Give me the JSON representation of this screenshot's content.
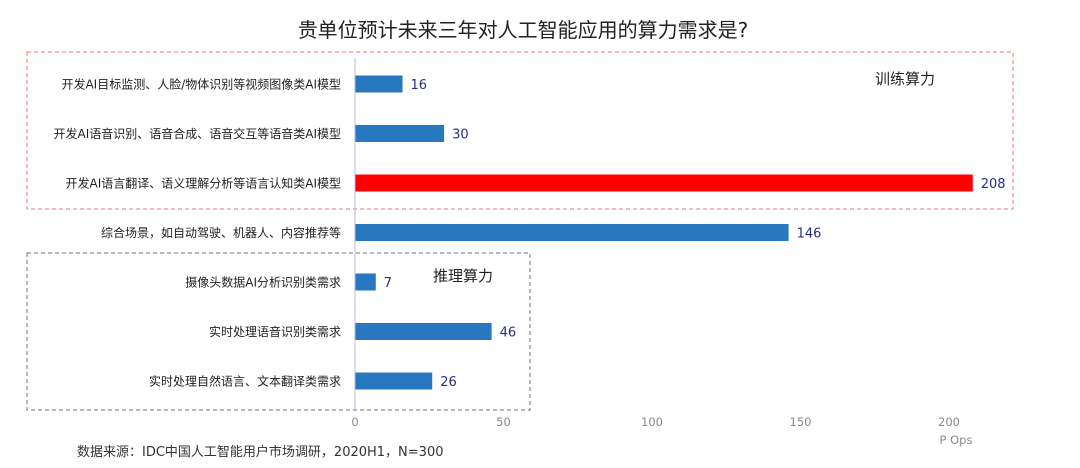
{
  "chart_data": {
    "type": "bar",
    "orientation": "horizontal",
    "title": "贵单位预计未来三年对人工智能应用的算力需求是?",
    "categories": [
      "开发AI目标监测、人脸/物体识别等视频图像类AI模型",
      "开发AI语音识别、语音合成、语音交互等语音类AI模型",
      "开发AI语言翻译、语义理解分析等语言认知类AI模型",
      "综合场景，如自动驾驶、机器人、内容推荐等",
      "摄像头数据AI分析识别类需求",
      "实时处理语音识别类需求",
      "实时处理自然语言、文本翻译类需求"
    ],
    "values": [
      16,
      30,
      208,
      146,
      7,
      46,
      26
    ],
    "highlight_index": 2,
    "xlim": [
      0,
      210
    ],
    "xticks": [
      0,
      50,
      100,
      150,
      200
    ],
    "xlabel": "P Ops",
    "ylabel": "",
    "grid": false,
    "colors": {
      "bar": "#2878c0",
      "highlight": "#ff0000",
      "value_label": "#2b2b8a",
      "axis": "#b8b8e0",
      "training_box": "#e87878",
      "inference_box": "#707070"
    },
    "groups": [
      {
        "label": "训练算力",
        "categories": [
          0,
          1,
          2
        ],
        "style": "dashed-red"
      },
      {
        "label": "推理算力",
        "categories": [
          4,
          5,
          6
        ],
        "style": "dashed-gray"
      }
    ]
  },
  "footer": {
    "source": "数据来源：IDC中国人工智能用户市场调研，2020H1，N=300"
  }
}
